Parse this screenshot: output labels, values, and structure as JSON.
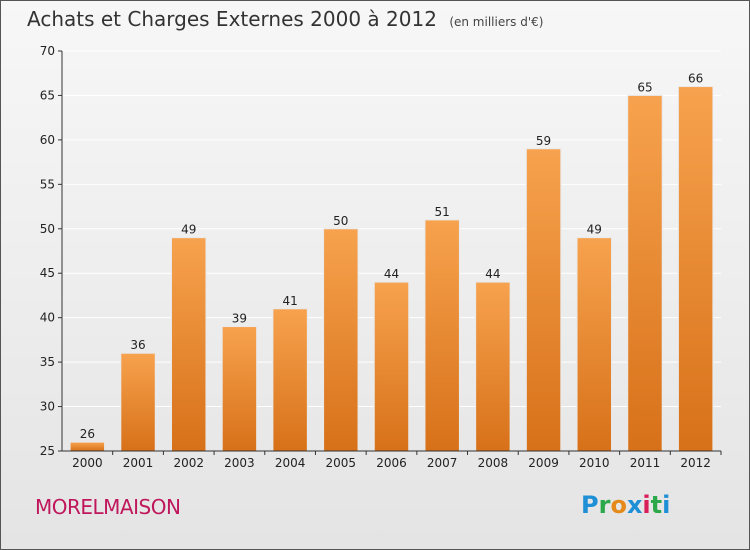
{
  "header": {
    "title": "Achats et Charges Externes 2000 à 2012",
    "unit": "(en milliers d'€)"
  },
  "footer": {
    "commune": "MORELMAISON",
    "logo_text": "Proxiti",
    "logo_colors": [
      "#1f8fd6",
      "#2aa84a",
      "#e58a1a",
      "#1f8fd6",
      "#d81f5a",
      "#2aa84a",
      "#1f8fd6"
    ]
  },
  "colors": {
    "bar_top": "#f7a24e",
    "bar_bottom": "#d77119",
    "bar_edge": "#e9e9e9",
    "grid": "#ffffff",
    "axis": "#333333"
  },
  "chart_data": {
    "type": "bar",
    "categories": [
      "2000",
      "2001",
      "2002",
      "2003",
      "2004",
      "2005",
      "2006",
      "2007",
      "2008",
      "2009",
      "2010",
      "2011",
      "2012"
    ],
    "values": [
      26,
      36,
      49,
      39,
      41,
      50,
      44,
      51,
      44,
      59,
      49,
      65,
      66
    ],
    "data_labels": [
      "26",
      "36",
      "49",
      "39",
      "41",
      "50",
      "44",
      "51",
      "44",
      "59",
      "49",
      "65",
      "66"
    ],
    "ylim": [
      25,
      70
    ],
    "yticks": [
      25,
      30,
      35,
      40,
      45,
      50,
      55,
      60,
      65,
      70
    ],
    "grid": true,
    "title": "Achats et Charges Externes 2000 à 2012",
    "xlabel": "",
    "ylabel": ""
  }
}
